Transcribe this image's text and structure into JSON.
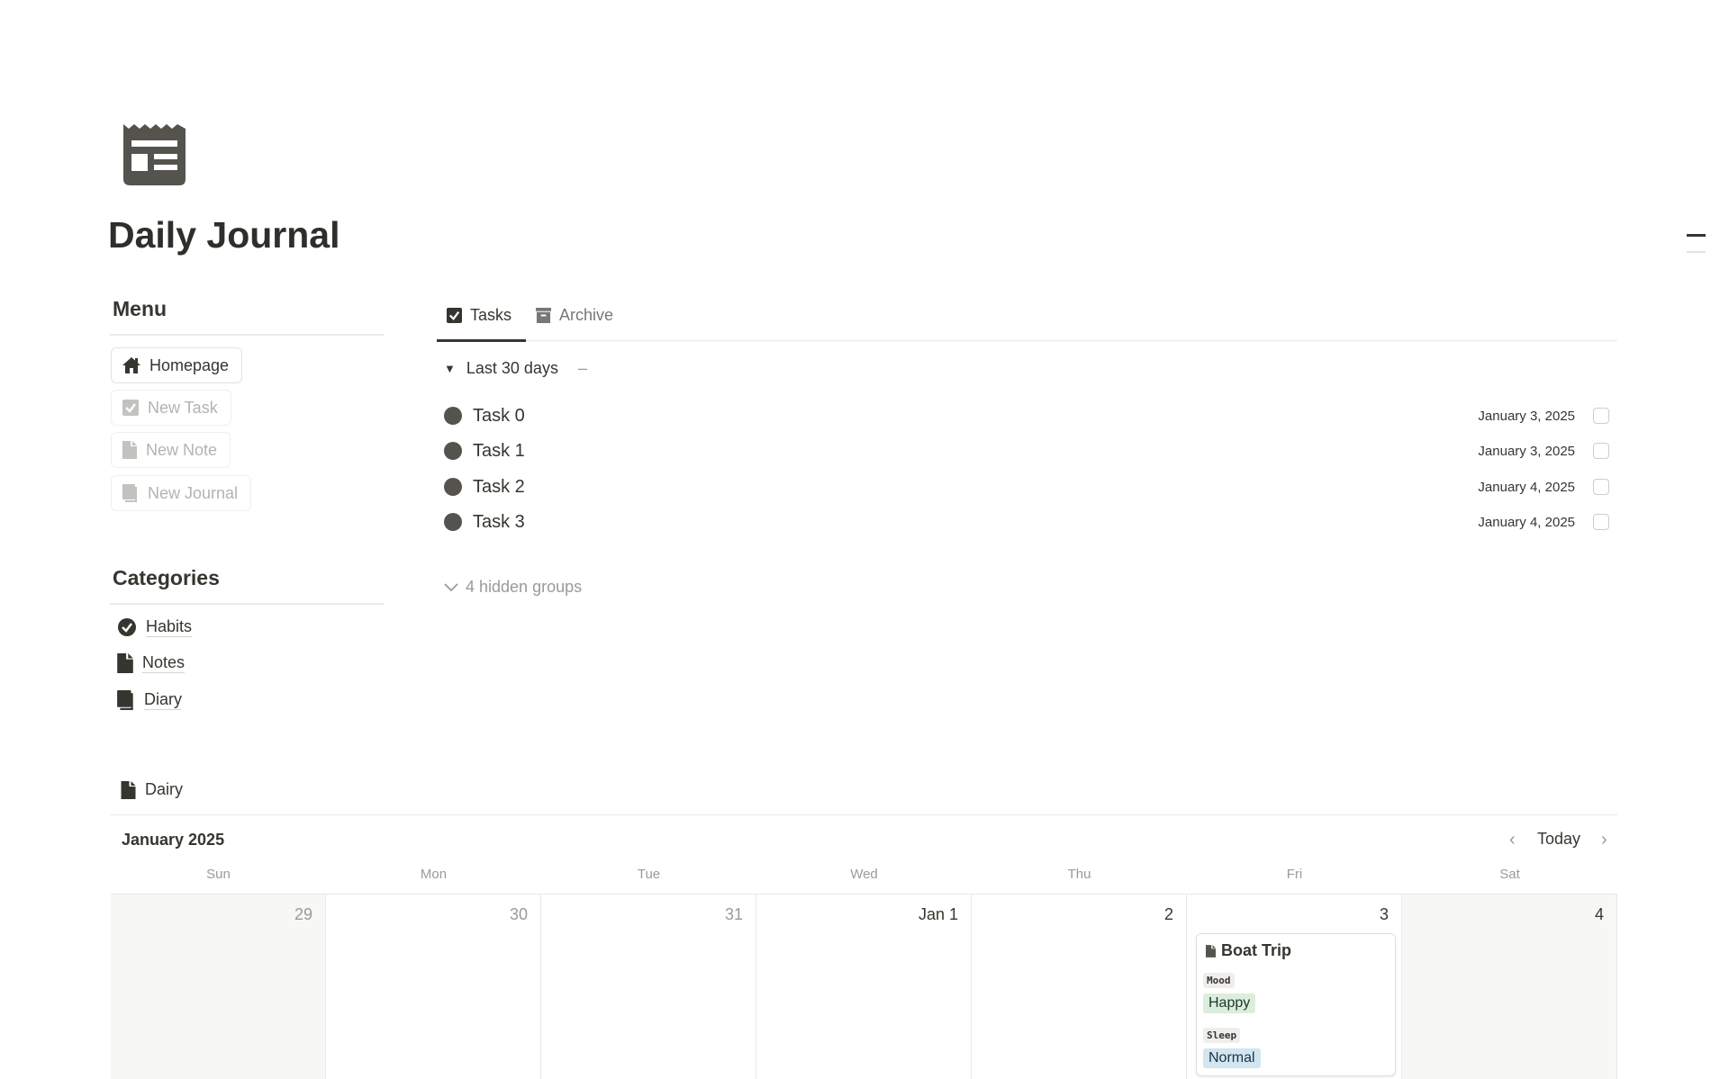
{
  "page": {
    "title": "Daily Journal",
    "icon": "newspaper-icon"
  },
  "menu": {
    "heading": "Menu",
    "items": [
      {
        "label": "Homepage",
        "icon": "home-icon"
      },
      {
        "label": "New Task",
        "icon": "checkbox-icon"
      },
      {
        "label": "New Note",
        "icon": "page-icon"
      },
      {
        "label": "New Journal",
        "icon": "journal-icon"
      }
    ]
  },
  "categories": {
    "heading": "Categories",
    "items": [
      {
        "label": "Habits",
        "icon": "check-circle-icon"
      },
      {
        "label": "Notes",
        "icon": "page-icon"
      },
      {
        "label": "Diary",
        "icon": "journal-icon"
      }
    ]
  },
  "tasks_view": {
    "tabs": [
      {
        "label": "Tasks",
        "active": true
      },
      {
        "label": "Archive",
        "active": false
      }
    ],
    "group": {
      "label": "Last 30 days",
      "count": "–"
    },
    "rows": [
      {
        "name": "Task 0",
        "date": "January 3, 2025",
        "done": false
      },
      {
        "name": "Task 1",
        "date": "January 3, 2025",
        "done": false
      },
      {
        "name": "Task 2",
        "date": "January 4, 2025",
        "done": false
      },
      {
        "name": "Task 3",
        "date": "January 4, 2025",
        "done": false
      }
    ],
    "hidden_groups": "4 hidden groups"
  },
  "calendar": {
    "db_title": "Dairy",
    "month": "January 2025",
    "today": "Today",
    "weekdays": [
      "Sun",
      "Mon",
      "Tue",
      "Wed",
      "Thu",
      "Fri",
      "Sat"
    ],
    "days": [
      "29",
      "30",
      "31",
      "Jan 1",
      "2",
      "3",
      "4"
    ],
    "event": {
      "title": "Boat Trip",
      "mood_label": "Mood",
      "mood": "Happy",
      "mood_color": "#dbeddb",
      "sleep_label": "Sleep",
      "sleep": "Normal",
      "sleep_color": "#d3e5ef"
    }
  }
}
